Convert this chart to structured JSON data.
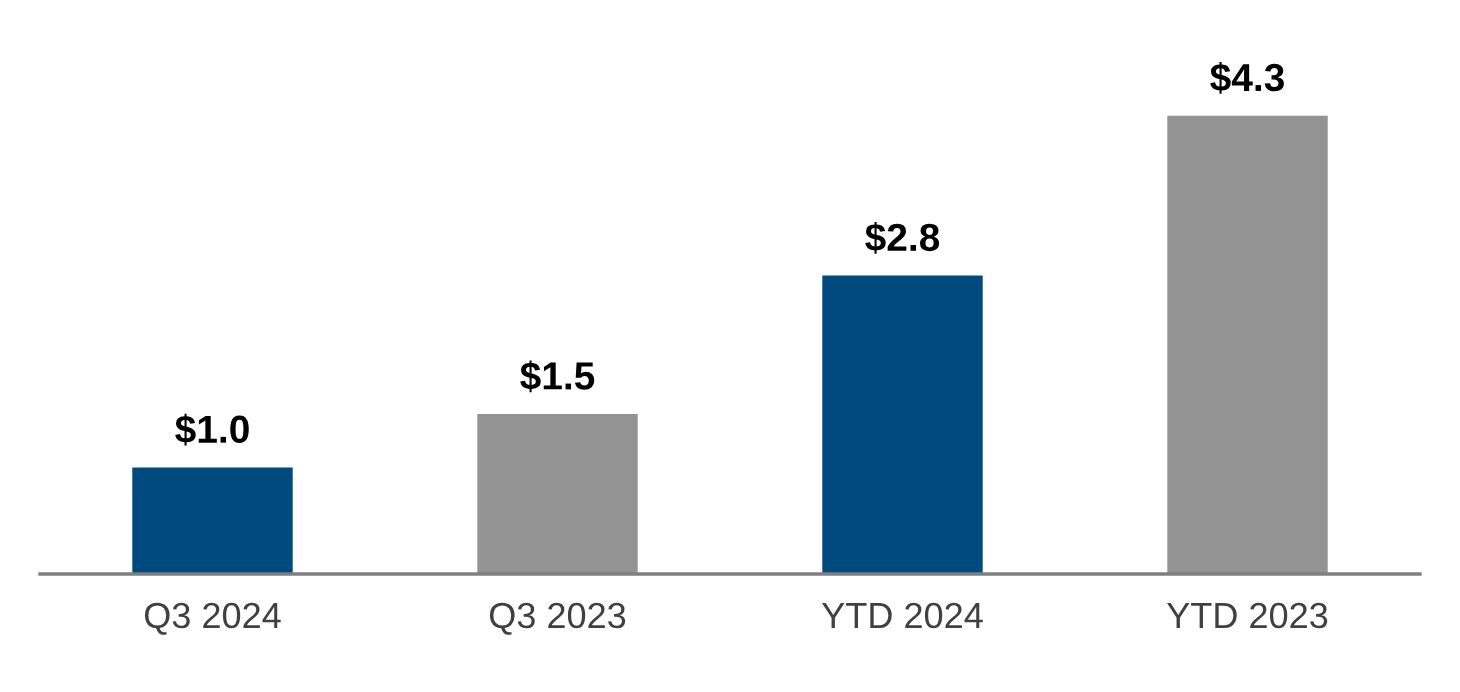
{
  "chart_data": {
    "type": "bar",
    "categories": [
      "Q3 2024",
      "Q3 2023",
      "YTD 2024",
      "YTD 2023"
    ],
    "values": [
      1.0,
      1.5,
      2.8,
      4.3
    ],
    "colors": [
      "#004a80",
      "#939393",
      "#004a80",
      "#939393"
    ],
    "value_labels": [
      "$1.0",
      "$1.5",
      "$2.8",
      "$4.3"
    ],
    "grid": false,
    "legend": false
  }
}
